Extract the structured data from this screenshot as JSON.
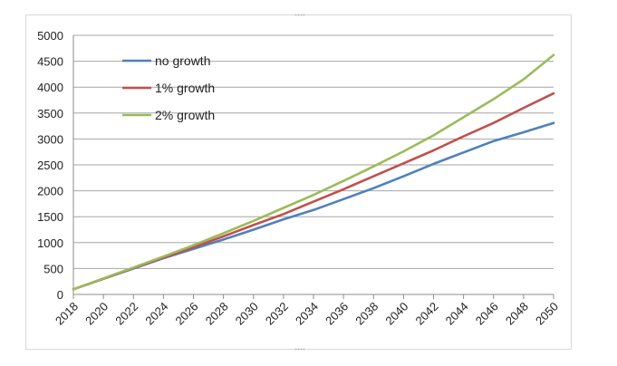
{
  "chart_data": {
    "type": "line",
    "title": "",
    "xlabel": "",
    "ylabel": "",
    "ylim": [
      0,
      5000
    ],
    "xlim": [
      2018,
      2050
    ],
    "y_ticks": [
      0,
      500,
      1000,
      1500,
      2000,
      2500,
      3000,
      3500,
      4000,
      4500,
      5000
    ],
    "x_ticks": [
      "2018",
      "2020",
      "2022",
      "2024",
      "2026",
      "2028",
      "2030",
      "2032",
      "2034",
      "2036",
      "2038",
      "2040",
      "2042",
      "2044",
      "2046",
      "2048",
      "2050"
    ],
    "grid": true,
    "legend_position": "top-left",
    "x": [
      2018,
      2020,
      2022,
      2024,
      2026,
      2028,
      2030,
      2032,
      2034,
      2036,
      2038,
      2040,
      2042,
      2044,
      2046,
      2048,
      2050
    ],
    "series": [
      {
        "name": "no growth",
        "color": "#4f81bd",
        "values": [
          100,
          300,
          500,
          700,
          880,
          1060,
          1250,
          1450,
          1630,
          1840,
          2050,
          2280,
          2520,
          2740,
          2960,
          3130,
          3310
        ]
      },
      {
        "name": "1% growth",
        "color": "#c0504d",
        "values": [
          100,
          305,
          510,
          710,
          910,
          1120,
          1340,
          1550,
          1790,
          2030,
          2280,
          2530,
          2780,
          3050,
          3310,
          3600,
          3880
        ]
      },
      {
        "name": "2% growth",
        "color": "#9bbb59",
        "values": [
          100,
          310,
          520,
          730,
          950,
          1180,
          1420,
          1670,
          1920,
          2190,
          2470,
          2760,
          3070,
          3420,
          3770,
          4150,
          4620
        ]
      }
    ]
  }
}
